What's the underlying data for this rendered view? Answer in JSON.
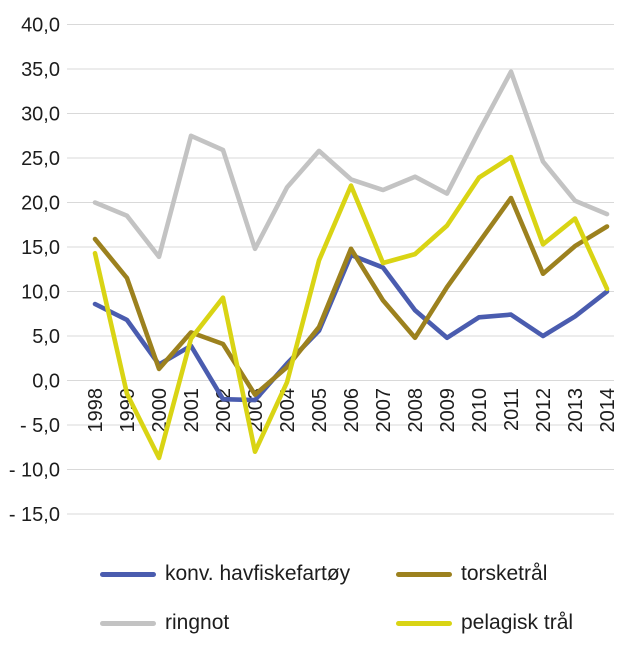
{
  "chart_data": {
    "type": "line",
    "title": "",
    "xlabel": "",
    "ylabel": "",
    "categories": [
      "1998",
      "1999",
      "2000",
      "2001",
      "2002",
      "2003",
      "2004",
      "2005",
      "2006",
      "2007",
      "2008",
      "2009",
      "2010",
      "2011",
      "2012",
      "2013",
      "2014"
    ],
    "series": [
      {
        "name": "konv. havfiskefartøy",
        "color": "#4a5caf",
        "values": [
          8.6,
          6.8,
          1.8,
          3.9,
          -2.1,
          -2.2,
          1.9,
          5.6,
          14.1,
          12.7,
          7.9,
          4.8,
          7.1,
          7.4,
          5.0,
          7.2,
          10.0
        ]
      },
      {
        "name": "torsketrål",
        "color": "#9c811e",
        "values": [
          15.9,
          11.5,
          1.3,
          5.4,
          4.1,
          -1.6,
          1.5,
          6.0,
          14.8,
          9.0,
          4.8,
          10.5,
          15.5,
          20.5,
          12.0,
          15.1,
          17.3
        ]
      },
      {
        "name": "ringnot",
        "color": "#c3c3c3",
        "values": [
          20.0,
          18.5,
          13.9,
          27.5,
          25.9,
          14.8,
          21.7,
          25.8,
          22.6,
          21.4,
          22.9,
          21.0,
          28.0,
          34.7,
          24.6,
          20.2,
          18.7
        ]
      },
      {
        "name": "pelagisk trål",
        "color": "#d9d414",
        "values": [
          14.3,
          -1.5,
          -8.7,
          4.7,
          9.3,
          -8.0,
          -0.2,
          13.5,
          21.9,
          13.2,
          14.2,
          17.4,
          22.8,
          25.1,
          15.3,
          18.2,
          10.3
        ]
      }
    ],
    "y_ticks": [
      {
        "label": "40,0",
        "value": 40
      },
      {
        "label": "35,0",
        "value": 35
      },
      {
        "label": "30,0",
        "value": 30
      },
      {
        "label": "25,0",
        "value": 25
      },
      {
        "label": "20,0",
        "value": 20
      },
      {
        "label": "15,0",
        "value": 15
      },
      {
        "label": "10,0",
        "value": 10
      },
      {
        "label": "5,0",
        "value": 5
      },
      {
        "label": "0,0",
        "value": 0
      },
      {
        "label": "- 5,0",
        "value": -5
      },
      {
        "label": "- 10,0",
        "value": -10
      },
      {
        "label": "- 15,0",
        "value": -15
      }
    ],
    "ylim": [
      -15,
      40
    ],
    "grid": "horizontal",
    "gridline_color": "#d9d9d9",
    "text_color": "#1d1d1d",
    "legend_position": "bottom",
    "value_format": "decimal-comma",
    "x_label_rotation": "90-degrees-up"
  },
  "legend": {
    "items": [
      {
        "label": "konv. havfiskefartøy"
      },
      {
        "label": "torsketrål"
      },
      {
        "label": "ringnot"
      },
      {
        "label": "pelagisk trål"
      }
    ]
  }
}
